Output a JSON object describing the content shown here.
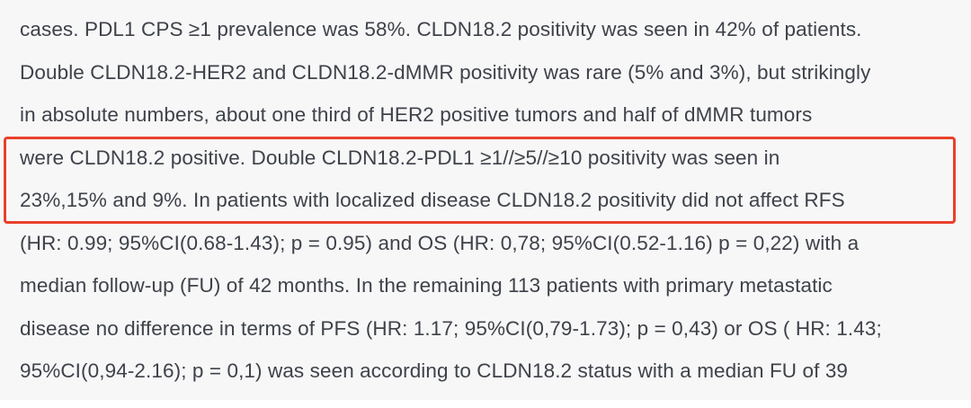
{
  "colors": {
    "background": "#f7f7f8",
    "text": "#3e4249",
    "highlight_border": "#e8412c"
  },
  "document": {
    "lines": [
      "cases. PDL1 CPS ≥1 prevalence was 58%. CLDN18.2 positivity was seen in 42% of patients.",
      "Double CLDN18.2-HER2 and CLDN18.2-dMMR positivity was rare (5% and 3%), but strikingly",
      "in absolute numbers, about one third of HER2 positive tumors and half of dMMR tumors",
      "were CLDN18.2 positive. Double CLDN18.2-PDL1 ≥1//≥5//≥10 positivity was seen in",
      "23%,15% and 9%. In patients with localized disease CLDN18.2 positivity did not affect RFS",
      "(HR: 0.99; 95%CI(0.68-1.43); p = 0.95) and OS (HR: 0,78; 95%CI(0.52-1.16) p = 0,22) with a",
      "median follow-up (FU) of 42 months. In the remaining 113 patients with primary metastatic",
      "disease no difference in terms of PFS (HR: 1.17; 95%CI(0,79-1.73); p = 0,43) or OS ( HR: 1.43;",
      "95%CI(0,94-2.16); p = 0,1) was seen according to CLDN18.2 status with a median FU of 39"
    ],
    "highlight": {
      "note": "red annotation box around lines 4-5",
      "first_line_index": 3,
      "last_line_index": 4
    }
  }
}
